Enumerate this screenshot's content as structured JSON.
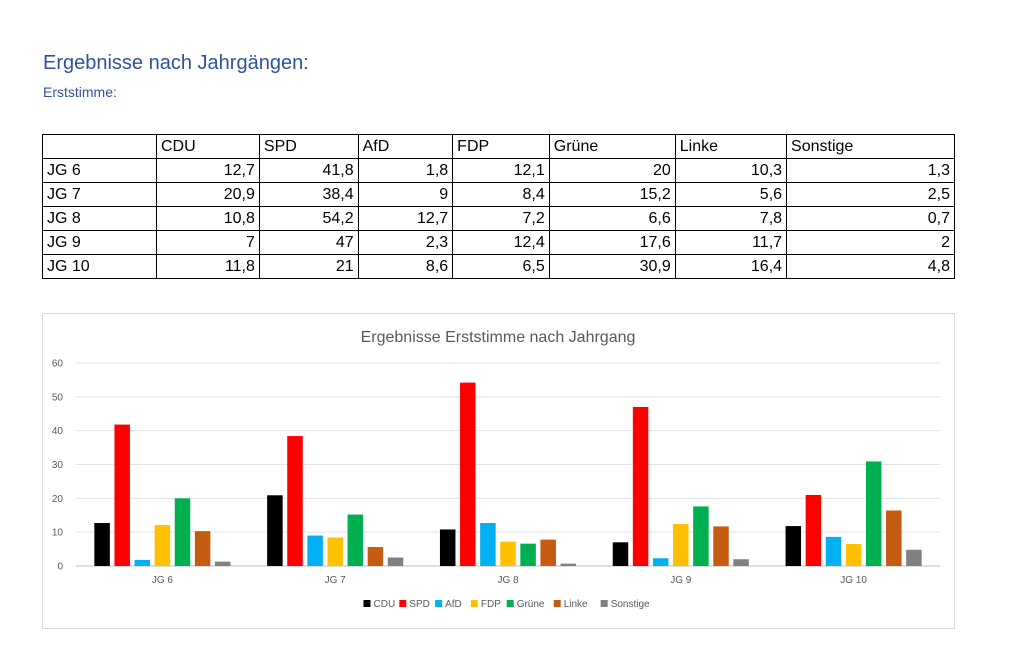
{
  "heading": "Ergebnisse nach Jahrgängen:",
  "subheading": "Erststimme:",
  "table": {
    "columns": [
      "",
      "CDU",
      "SPD",
      "AfD",
      "FDP",
      "Grüne",
      "Linke",
      "Sonstige"
    ],
    "rows": [
      {
        "label": "JG 6",
        "cells": [
          "12,7",
          "41,8",
          "1,8",
          "12,1",
          "20",
          "10,3",
          "1,3"
        ]
      },
      {
        "label": "JG 7",
        "cells": [
          "20,9",
          "38,4",
          "9",
          "8,4",
          "15,2",
          "5,6",
          "2,5"
        ]
      },
      {
        "label": "JG 8",
        "cells": [
          "10,8",
          "54,2",
          "12,7",
          "7,2",
          "6,6",
          "7,8",
          "0,7"
        ]
      },
      {
        "label": "JG 9",
        "cells": [
          "7",
          "47",
          "2,3",
          "12,4",
          "17,6",
          "11,7",
          "2"
        ]
      },
      {
        "label": "JG 10",
        "cells": [
          "11,8",
          "21",
          "8,6",
          "6,5",
          "30,9",
          "16,4",
          "4,8"
        ]
      }
    ]
  },
  "chart_data": {
    "type": "bar",
    "title": "Ergebnisse Erststimme nach Jahrgang",
    "xlabel": "",
    "ylabel": "",
    "categories": [
      "JG 6",
      "JG 7",
      "JG 8",
      "JG 9",
      "JG 10"
    ],
    "ylim": [
      0,
      60
    ],
    "yticks": [
      0,
      10,
      20,
      30,
      40,
      50,
      60
    ],
    "grid": true,
    "legend": "bottom",
    "series": [
      {
        "name": "CDU",
        "color": "#000000",
        "values": [
          12.7,
          20.9,
          10.8,
          7,
          11.8
        ]
      },
      {
        "name": "SPD",
        "color": "#ff0000",
        "values": [
          41.8,
          38.4,
          54.2,
          47,
          21
        ]
      },
      {
        "name": "AfD",
        "color": "#00b0f0",
        "values": [
          1.8,
          9,
          12.7,
          2.3,
          8.6
        ]
      },
      {
        "name": "FDP",
        "color": "#ffc000",
        "values": [
          12.1,
          8.4,
          7.2,
          12.4,
          6.5
        ]
      },
      {
        "name": "Grüne",
        "color": "#00b050",
        "values": [
          20,
          15.2,
          6.6,
          17.6,
          30.9
        ]
      },
      {
        "name": "Linke",
        "color": "#c55a11",
        "values": [
          10.3,
          5.6,
          7.8,
          11.7,
          16.4
        ]
      },
      {
        "name": "Sonstige",
        "color": "#808080",
        "values": [
          1.3,
          2.5,
          0.7,
          2,
          4.8
        ]
      }
    ]
  }
}
